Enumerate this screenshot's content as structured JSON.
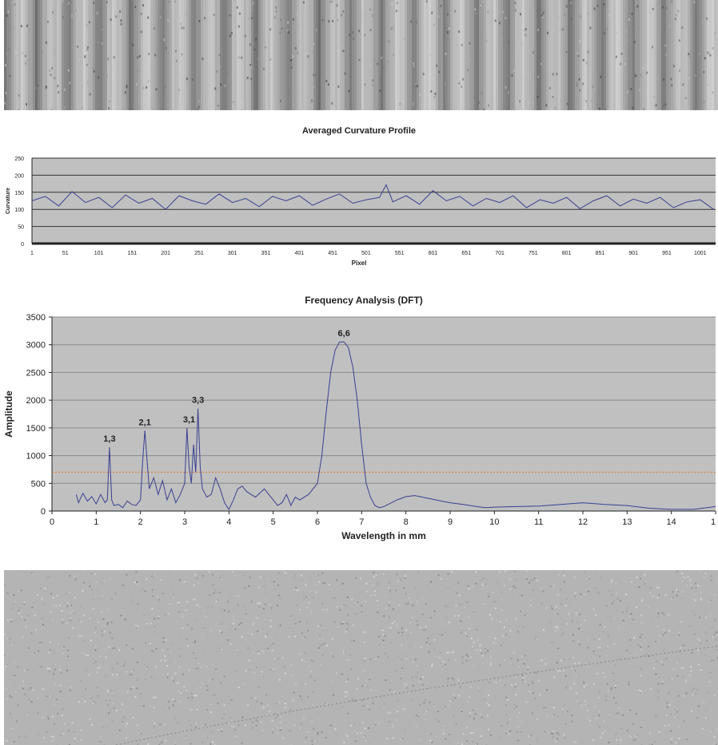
{
  "chart_data": [
    {
      "type": "line",
      "title": "Averaged Curvature Profile",
      "xlabel": "Pixel",
      "ylabel": "Curvature",
      "xlim": [
        1,
        1024
      ],
      "ylim": [
        0,
        250
      ],
      "yticks": [
        0,
        50,
        100,
        150,
        200,
        250
      ],
      "xticks": [
        1,
        51,
        101,
        151,
        201,
        251,
        301,
        351,
        401,
        451,
        501,
        551,
        601,
        651,
        701,
        751,
        801,
        851,
        901,
        951,
        1001
      ],
      "grid": true,
      "legend": "none",
      "series": [
        {
          "x": [
            1,
            21,
            41,
            61,
            81,
            101,
            121,
            141,
            161,
            181,
            201,
            221,
            241,
            261,
            281,
            301,
            321,
            341,
            361,
            381,
            401,
            421,
            441,
            461,
            481,
            501,
            521,
            531,
            541,
            561,
            581,
            601,
            621,
            641,
            661,
            681,
            701,
            721,
            741,
            761,
            781,
            801,
            821,
            841,
            861,
            881,
            901,
            921,
            941,
            961,
            981,
            1001,
            1021
          ],
          "y": [
            125,
            138,
            110,
            152,
            120,
            135,
            105,
            142,
            118,
            132,
            100,
            140,
            125,
            115,
            145,
            120,
            132,
            108,
            138,
            125,
            140,
            112,
            130,
            145,
            118,
            128,
            135,
            172,
            122,
            140,
            115,
            155,
            125,
            138,
            110,
            132,
            120,
            140,
            105,
            128,
            118,
            135,
            102,
            125,
            140,
            110,
            130,
            118,
            135,
            105,
            122,
            128,
            100
          ]
        }
      ],
      "line_color": "#3b3f8f"
    },
    {
      "type": "line",
      "title": "Frequency Analysis (DFT)",
      "xlabel": "Wavelength in mm",
      "ylabel": "Amplitude",
      "xlim": [
        0,
        15
      ],
      "ylim": [
        0,
        3500
      ],
      "yticks": [
        0,
        500,
        1000,
        1500,
        2000,
        2500,
        3000,
        3500
      ],
      "xticks": [
        "0",
        "1",
        "2",
        "3",
        "4",
        "5",
        "6",
        "7",
        "8",
        "9",
        "10",
        "11",
        "12",
        "13",
        "14",
        "1"
      ],
      "grid": true,
      "legend": "none",
      "threshold": 700,
      "threshold_color": "#e07a30",
      "line_color": "#3b3f8f",
      "annotations": [
        {
          "text": "1,3",
          "x": 1.3,
          "y": 1150
        },
        {
          "text": "2,1",
          "x": 2.1,
          "y": 1450
        },
        {
          "text": "3,1",
          "x": 3.1,
          "y": 1500
        },
        {
          "text": "3,3",
          "x": 3.3,
          "y": 1850
        },
        {
          "text": "6,6",
          "x": 6.6,
          "y": 3050
        }
      ],
      "series": [
        {
          "x": [
            0.55,
            0.6,
            0.7,
            0.8,
            0.9,
            1.0,
            1.1,
            1.2,
            1.25,
            1.3,
            1.35,
            1.4,
            1.5,
            1.6,
            1.7,
            1.8,
            1.9,
            2.0,
            2.05,
            2.1,
            2.15,
            2.2,
            2.3,
            2.4,
            2.5,
            2.6,
            2.7,
            2.8,
            2.9,
            3.0,
            3.05,
            3.1,
            3.15,
            3.2,
            3.25,
            3.3,
            3.35,
            3.4,
            3.5,
            3.6,
            3.7,
            3.8,
            3.9,
            4.0,
            4.1,
            4.2,
            4.3,
            4.4,
            4.6,
            4.8,
            5.0,
            5.1,
            5.2,
            5.3,
            5.4,
            5.5,
            5.6,
            5.8,
            6.0,
            6.1,
            6.2,
            6.3,
            6.4,
            6.5,
            6.6,
            6.7,
            6.8,
            6.9,
            7.0,
            7.1,
            7.2,
            7.3,
            7.4,
            7.5,
            7.6,
            7.8,
            8.0,
            8.2,
            8.5,
            8.8,
            9.0,
            9.3,
            9.6,
            9.8,
            10,
            10.5,
            11,
            11.5,
            12,
            12.5,
            13,
            13.5,
            14,
            14.5,
            15
          ],
          "y": [
            300,
            150,
            320,
            180,
            260,
            130,
            300,
            150,
            200,
            1150,
            200,
            100,
            120,
            60,
            180,
            120,
            100,
            200,
            900,
            1450,
            900,
            400,
            600,
            300,
            550,
            200,
            400,
            150,
            300,
            500,
            1500,
            800,
            500,
            1200,
            700,
            1850,
            800,
            400,
            250,
            300,
            600,
            400,
            150,
            30,
            200,
            400,
            450,
            350,
            250,
            400,
            200,
            100,
            150,
            300,
            100,
            250,
            200,
            300,
            500,
            1000,
            1800,
            2500,
            2900,
            3050,
            3050,
            2950,
            2600,
            2000,
            1200,
            500,
            250,
            100,
            60,
            80,
            120,
            200,
            260,
            280,
            230,
            180,
            150,
            120,
            80,
            60,
            70,
            80,
            90,
            120,
            150,
            120,
            100,
            50,
            30,
            30,
            80
          ]
        }
      ]
    }
  ]
}
